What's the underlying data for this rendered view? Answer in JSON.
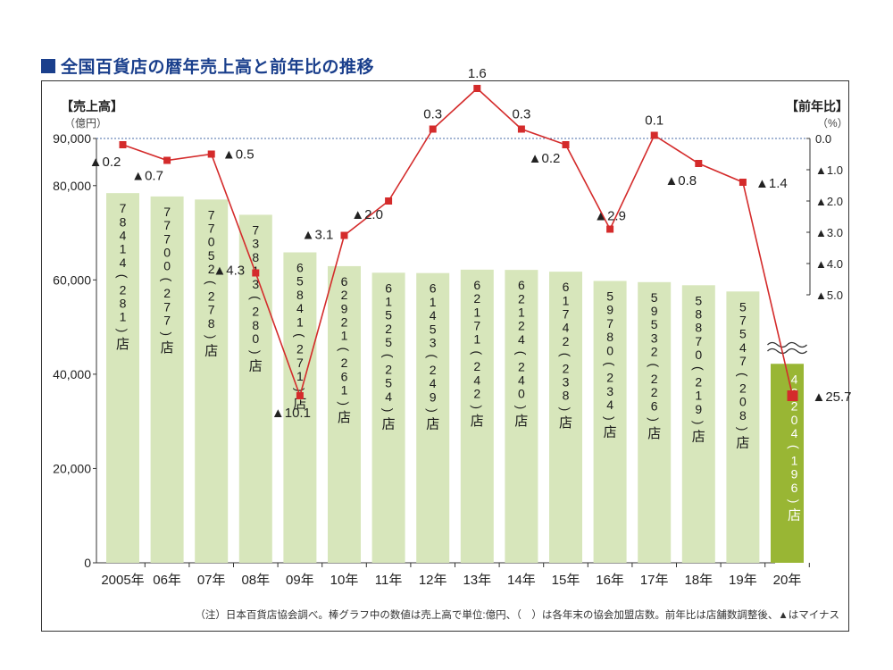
{
  "title": "全国百貨店の暦年売上高と前年比の推移",
  "chart_data": {
    "type": "bar",
    "categories": [
      "2005年",
      "06年",
      "07年",
      "08年",
      "09年",
      "10年",
      "11年",
      "12年",
      "13年",
      "14年",
      "15年",
      "16年",
      "17年",
      "18年",
      "19年",
      "20年"
    ],
    "bar_labels": [
      "78414",
      "77700",
      "77052",
      "73813",
      "65841",
      "62921",
      "61525",
      "61453",
      "62171",
      "62124",
      "61742",
      "59780",
      "59532",
      "58870",
      "57547",
      "42204"
    ],
    "store_counts": [
      "281",
      "277",
      "278",
      "280",
      "271",
      "261",
      "254",
      "249",
      "242",
      "240",
      "238",
      "234",
      "226",
      "219",
      "208",
      "196"
    ],
    "series": [
      {
        "name": "売上高",
        "values": [
          78414,
          77700,
          77052,
          73813,
          65841,
          62921,
          61525,
          61453,
          62171,
          62124,
          61742,
          59780,
          59532,
          58870,
          57547,
          42204
        ]
      },
      {
        "name": "前年比",
        "values": [
          -0.2,
          -0.7,
          -0.5,
          -4.3,
          -10.1,
          -3.1,
          -2.0,
          0.3,
          1.6,
          0.3,
          -0.2,
          -2.9,
          0.1,
          -0.8,
          -1.4,
          -25.7
        ],
        "labels": [
          "▲0.2",
          "▲0.7",
          "▲0.5",
          "▲4.3",
          "▲10.1",
          "▲3.1",
          "▲2.0",
          "0.3",
          "1.6",
          "0.3",
          "▲0.2",
          "▲2.9",
          "0.1",
          "▲0.8",
          "▲1.4",
          "▲25.7"
        ]
      }
    ],
    "left_axis": {
      "label": "【売上高】",
      "unit": "（億円）",
      "ticks": [
        "0",
        "20,000",
        "40,000",
        "60,000",
        "80,000",
        "90,000"
      ],
      "tick_values": [
        0,
        20000,
        40000,
        60000,
        80000,
        90000
      ],
      "ylim": [
        0,
        90000
      ]
    },
    "right_axis": {
      "label": "【前年比】",
      "unit": "（%）",
      "ticks": [
        "0.0",
        "▲1.0",
        "▲2.0",
        "▲3.0",
        "▲4.0",
        "▲5.0"
      ],
      "tick_values": [
        0,
        -1,
        -2,
        -3,
        -4,
        -5
      ],
      "ylim": [
        -5,
        0
      ]
    },
    "store_suffix": "店",
    "bar_color": "#d7e6bb",
    "highlight_bar_color": "#99b634",
    "line_color": "#d42b2b",
    "note": "（注）日本百貨店協会調べ。棒グラフ中の数値は売上高で単位:億円、（　）は各年末の協会加盟店数。前年比は店舗数調整後、▲はマイナス"
  }
}
